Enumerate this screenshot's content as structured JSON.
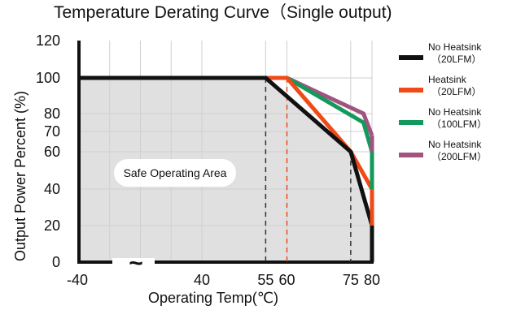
{
  "chart_data": {
    "type": "line",
    "title": "Temperature Derating Curve（Single output)",
    "xlabel": "Operating Temp(℃)",
    "ylabel": "Output Power Percent (%)",
    "xlim": [
      -40,
      80
    ],
    "ylim": [
      0,
      120
    ],
    "x_ticks": [
      {
        "value": -40,
        "label": "-40"
      },
      {
        "value": 40,
        "label": "40"
      },
      {
        "value": 55,
        "label": "55"
      },
      {
        "value": 60,
        "label": "60"
      },
      {
        "value": 75,
        "label": "75"
      },
      {
        "value": 80,
        "label": "80"
      }
    ],
    "y_ticks": [
      {
        "value": 0,
        "label": "0"
      },
      {
        "value": 20,
        "label": "20"
      },
      {
        "value": 40,
        "label": "40"
      },
      {
        "value": 60,
        "label": "60"
      },
      {
        "value": 70,
        "label": "70"
      },
      {
        "value": 80,
        "label": "80"
      },
      {
        "value": 100,
        "label": "100"
      },
      {
        "value": 120,
        "label": "120"
      }
    ],
    "axis_break_symbol": "~",
    "grid": true,
    "legend_position": "right",
    "annotation": "Safe Operating Area",
    "shaded_region_color": "#e0e0e0",
    "series": [
      {
        "name": "No Heatsink (20LFM)",
        "legend_line1": "No Heatsink",
        "legend_line2": "（20LFM）",
        "color": "#111111",
        "points": [
          [
            -40,
            100
          ],
          [
            55,
            100
          ],
          [
            75,
            60
          ],
          [
            80,
            20
          ]
        ]
      },
      {
        "name": "Heatsink (20LFM)",
        "legend_line1": "Heatsink",
        "legend_line2": "（20LFM）",
        "color": "#ef4a17",
        "points": [
          [
            55,
            100
          ],
          [
            60,
            100
          ],
          [
            75,
            60
          ],
          [
            80,
            40
          ]
        ]
      },
      {
        "name": "No Heatsink (100LFM)",
        "legend_line1": "No Heatsink",
        "legend_line2": "（100LFM）",
        "color": "#12995b",
        "points": [
          [
            60,
            100
          ],
          [
            78,
            75
          ],
          [
            80,
            60
          ]
        ]
      },
      {
        "name": "No Heatsink (200LFM)",
        "legend_line1": "No Heatsink",
        "legend_line2": "（200LFM）",
        "color": "#a0547e",
        "points": [
          [
            60,
            100
          ],
          [
            78,
            80
          ],
          [
            80,
            68
          ]
        ]
      }
    ],
    "dashed_guides": [
      {
        "x": 55,
        "y": 100,
        "color": "#333333"
      },
      {
        "x": 60,
        "y": 100,
        "color": "#ef4a17"
      },
      {
        "x": 75,
        "y": 60,
        "color": "#333333"
      }
    ]
  }
}
